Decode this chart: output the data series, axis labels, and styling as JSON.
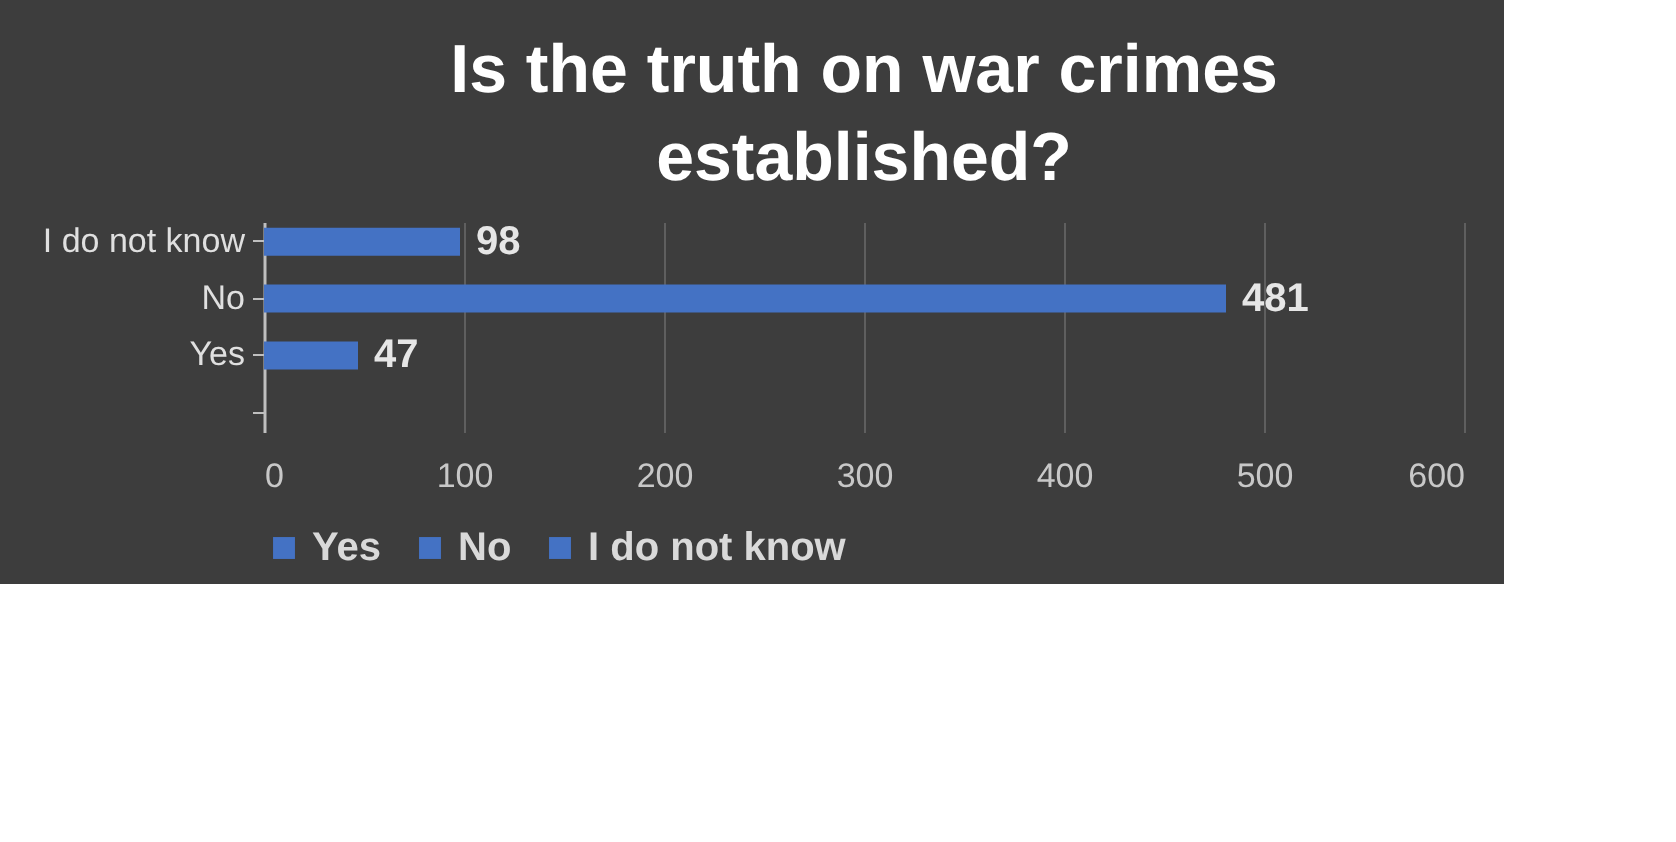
{
  "chart_data": {
    "type": "bar",
    "orientation": "horizontal",
    "title": "Is the truth on war crimes established?",
    "categories": [
      "I do not know",
      "No",
      "Yes",
      null
    ],
    "series": [
      {
        "name": "Yes",
        "color": "#4472c4",
        "values": [
          null,
          null,
          47,
          null
        ]
      },
      {
        "name": "No",
        "color": "#4472c4",
        "values": [
          null,
          481,
          null,
          null
        ]
      },
      {
        "name": "I do not know",
        "color": "#4472c4",
        "values": [
          98,
          null,
          null,
          null
        ]
      }
    ],
    "xlim": [
      0,
      600
    ],
    "xticks": [
      0,
      100,
      200,
      300,
      400,
      500,
      600
    ],
    "grid": "x",
    "legend": "bottom",
    "data_labels": true
  }
}
